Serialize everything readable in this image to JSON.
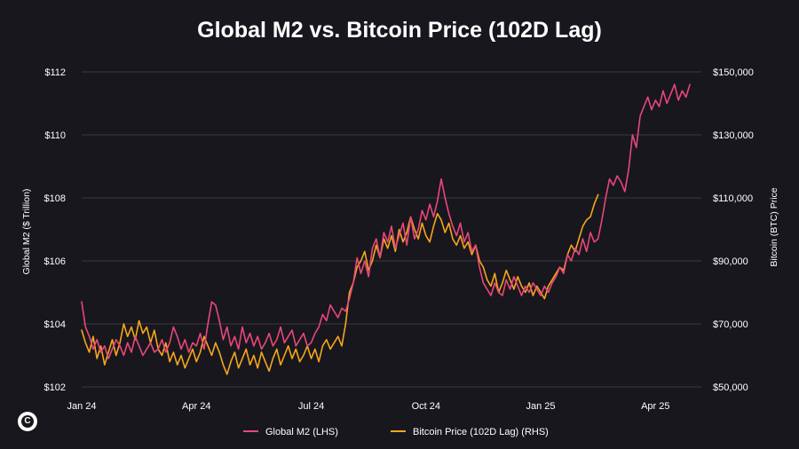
{
  "chart_data": {
    "type": "line",
    "title": "Global M2 vs. Bitcoin Price (102D Lag)",
    "ylabel_left": "Global M2 ($ Trillion)",
    "ylabel_right": "Bitcoin (BTC) Price",
    "ylim_left": [
      102,
      112
    ],
    "ylim_right": [
      50000,
      150000
    ],
    "yticks_left": [
      "$102",
      "$104",
      "$106",
      "$108",
      "$110",
      "$112"
    ],
    "yticks_right": [
      "$50,000",
      "$70,000",
      "$90,000",
      "$110,000",
      "$130,000",
      "$150,000"
    ],
    "xlim": [
      0,
      16.2
    ],
    "xticks": [
      {
        "label": "Jan 24",
        "x": 0
      },
      {
        "label": "Apr 24",
        "x": 3
      },
      {
        "label": "Jul 24",
        "x": 6
      },
      {
        "label": "Oct 24",
        "x": 9
      },
      {
        "label": "Jan 25",
        "x": 12
      },
      {
        "label": "Apr 25",
        "x": 15
      }
    ],
    "grid": true,
    "legend_position": "bottom-center",
    "series": [
      {
        "name": "Global M2 (LHS)",
        "axis": "left",
        "color": "#e8477a",
        "points": [
          [
            0.0,
            104.7
          ],
          [
            0.1,
            103.9
          ],
          [
            0.2,
            103.6
          ],
          [
            0.3,
            103.2
          ],
          [
            0.4,
            103.5
          ],
          [
            0.5,
            103.1
          ],
          [
            0.6,
            103.3
          ],
          [
            0.7,
            102.9
          ],
          [
            0.8,
            103.2
          ],
          [
            0.9,
            103.5
          ],
          [
            1.0,
            103.3
          ],
          [
            1.1,
            103.0
          ],
          [
            1.2,
            103.4
          ],
          [
            1.3,
            103.1
          ],
          [
            1.4,
            103.6
          ],
          [
            1.5,
            103.3
          ],
          [
            1.6,
            103.0
          ],
          [
            1.7,
            103.2
          ],
          [
            1.8,
            103.4
          ],
          [
            1.9,
            103.1
          ],
          [
            2.0,
            103.2
          ],
          [
            2.1,
            103.5
          ],
          [
            2.2,
            103.1
          ],
          [
            2.3,
            103.4
          ],
          [
            2.4,
            103.9
          ],
          [
            2.5,
            103.6
          ],
          [
            2.6,
            103.2
          ],
          [
            2.7,
            103.5
          ],
          [
            2.8,
            103.1
          ],
          [
            2.9,
            103.4
          ],
          [
            3.0,
            103.3
          ],
          [
            3.1,
            103.7
          ],
          [
            3.2,
            103.2
          ],
          [
            3.3,
            104.0
          ],
          [
            3.4,
            104.7
          ],
          [
            3.5,
            104.6
          ],
          [
            3.6,
            104.1
          ],
          [
            3.7,
            103.5
          ],
          [
            3.8,
            103.9
          ],
          [
            3.9,
            103.3
          ],
          [
            4.0,
            103.6
          ],
          [
            4.1,
            103.2
          ],
          [
            4.2,
            103.9
          ],
          [
            4.3,
            103.4
          ],
          [
            4.4,
            103.7
          ],
          [
            4.5,
            103.3
          ],
          [
            4.6,
            103.6
          ],
          [
            4.7,
            103.2
          ],
          [
            4.8,
            103.4
          ],
          [
            4.9,
            103.7
          ],
          [
            5.0,
            103.3
          ],
          [
            5.1,
            103.5
          ],
          [
            5.2,
            103.9
          ],
          [
            5.3,
            103.4
          ],
          [
            5.4,
            103.6
          ],
          [
            5.5,
            103.8
          ],
          [
            5.6,
            103.3
          ],
          [
            5.7,
            103.5
          ],
          [
            5.8,
            103.7
          ],
          [
            5.9,
            103.3
          ],
          [
            6.0,
            103.4
          ],
          [
            6.1,
            103.7
          ],
          [
            6.2,
            103.9
          ],
          [
            6.3,
            104.3
          ],
          [
            6.4,
            104.1
          ],
          [
            6.5,
            104.6
          ],
          [
            6.6,
            104.4
          ],
          [
            6.7,
            104.2
          ],
          [
            6.8,
            104.5
          ],
          [
            6.9,
            104.4
          ],
          [
            7.0,
            104.8
          ],
          [
            7.1,
            105.3
          ],
          [
            7.2,
            106.1
          ],
          [
            7.3,
            105.6
          ],
          [
            7.4,
            106.0
          ],
          [
            7.5,
            105.5
          ],
          [
            7.6,
            106.4
          ],
          [
            7.7,
            106.7
          ],
          [
            7.8,
            106.1
          ],
          [
            7.9,
            106.9
          ],
          [
            8.0,
            106.6
          ],
          [
            8.1,
            107.1
          ],
          [
            8.2,
            106.4
          ],
          [
            8.3,
            106.8
          ],
          [
            8.4,
            107.2
          ],
          [
            8.5,
            106.5
          ],
          [
            8.6,
            107.4
          ],
          [
            8.7,
            106.7
          ],
          [
            8.8,
            107.0
          ],
          [
            8.9,
            107.6
          ],
          [
            9.0,
            107.3
          ],
          [
            9.1,
            107.8
          ],
          [
            9.2,
            107.4
          ],
          [
            9.3,
            107.9
          ],
          [
            9.4,
            108.6
          ],
          [
            9.5,
            108.0
          ],
          [
            9.6,
            107.5
          ],
          [
            9.7,
            107.1
          ],
          [
            9.8,
            106.8
          ],
          [
            9.9,
            107.2
          ],
          [
            10.0,
            106.6
          ],
          [
            10.1,
            106.9
          ],
          [
            10.2,
            106.3
          ],
          [
            10.3,
            106.5
          ],
          [
            10.4,
            105.8
          ],
          [
            10.5,
            105.3
          ],
          [
            10.6,
            105.1
          ],
          [
            10.7,
            104.9
          ],
          [
            10.8,
            105.3
          ],
          [
            10.9,
            105.0
          ],
          [
            11.0,
            104.9
          ],
          [
            11.1,
            105.4
          ],
          [
            11.2,
            105.1
          ],
          [
            11.3,
            105.5
          ],
          [
            11.4,
            105.2
          ],
          [
            11.5,
            104.9
          ],
          [
            11.6,
            105.2
          ],
          [
            11.7,
            105.0
          ],
          [
            11.8,
            105.3
          ],
          [
            11.9,
            105.1
          ],
          [
            12.0,
            104.9
          ],
          [
            12.1,
            105.2
          ],
          [
            12.2,
            105.0
          ],
          [
            12.3,
            105.3
          ],
          [
            12.4,
            105.5
          ],
          [
            12.5,
            105.8
          ],
          [
            12.6,
            105.6
          ],
          [
            12.7,
            106.2
          ],
          [
            12.8,
            106.0
          ],
          [
            12.9,
            106.4
          ],
          [
            13.0,
            106.2
          ],
          [
            13.1,
            106.7
          ],
          [
            13.2,
            106.3
          ],
          [
            13.3,
            106.9
          ],
          [
            13.4,
            106.6
          ],
          [
            13.5,
            106.7
          ],
          [
            13.6,
            107.3
          ],
          [
            13.7,
            108.0
          ],
          [
            13.8,
            108.6
          ],
          [
            13.9,
            108.4
          ],
          [
            14.0,
            108.7
          ],
          [
            14.1,
            108.5
          ],
          [
            14.2,
            108.2
          ],
          [
            14.3,
            108.9
          ],
          [
            14.4,
            110.0
          ],
          [
            14.5,
            109.6
          ],
          [
            14.6,
            110.6
          ],
          [
            14.7,
            110.9
          ],
          [
            14.8,
            111.2
          ],
          [
            14.9,
            110.8
          ],
          [
            15.0,
            111.1
          ],
          [
            15.1,
            110.9
          ],
          [
            15.2,
            111.4
          ],
          [
            15.3,
            111.0
          ],
          [
            15.4,
            111.3
          ],
          [
            15.5,
            111.6
          ],
          [
            15.6,
            111.1
          ],
          [
            15.7,
            111.4
          ],
          [
            15.8,
            111.2
          ],
          [
            15.9,
            111.6
          ]
        ]
      },
      {
        "name": "Bitcoin Price (102D Lag) (RHS)",
        "axis": "right",
        "color": "#f5a71c",
        "points": [
          [
            0.0,
            68000
          ],
          [
            0.1,
            64000
          ],
          [
            0.2,
            61000
          ],
          [
            0.3,
            66000
          ],
          [
            0.4,
            59000
          ],
          [
            0.5,
            63000
          ],
          [
            0.6,
            57000
          ],
          [
            0.7,
            61000
          ],
          [
            0.8,
            65000
          ],
          [
            0.9,
            60000
          ],
          [
            1.0,
            64000
          ],
          [
            1.1,
            70000
          ],
          [
            1.2,
            66000
          ],
          [
            1.3,
            69000
          ],
          [
            1.4,
            65000
          ],
          [
            1.5,
            71000
          ],
          [
            1.6,
            67000
          ],
          [
            1.7,
            69000
          ],
          [
            1.8,
            64000
          ],
          [
            1.9,
            68000
          ],
          [
            2.0,
            62000
          ],
          [
            2.1,
            60000
          ],
          [
            2.2,
            64000
          ],
          [
            2.3,
            58000
          ],
          [
            2.4,
            61000
          ],
          [
            2.5,
            57000
          ],
          [
            2.6,
            60000
          ],
          [
            2.7,
            56000
          ],
          [
            2.8,
            59000
          ],
          [
            2.9,
            62000
          ],
          [
            3.0,
            58000
          ],
          [
            3.1,
            61000
          ],
          [
            3.2,
            66000
          ],
          [
            3.3,
            63000
          ],
          [
            3.4,
            60000
          ],
          [
            3.5,
            64000
          ],
          [
            3.6,
            61000
          ],
          [
            3.7,
            57000
          ],
          [
            3.8,
            54000
          ],
          [
            3.9,
            58000
          ],
          [
            4.0,
            61000
          ],
          [
            4.1,
            56000
          ],
          [
            4.2,
            59000
          ],
          [
            4.3,
            62000
          ],
          [
            4.4,
            57000
          ],
          [
            4.5,
            60000
          ],
          [
            4.6,
            56000
          ],
          [
            4.7,
            61000
          ],
          [
            4.8,
            58000
          ],
          [
            4.9,
            55000
          ],
          [
            5.0,
            59000
          ],
          [
            5.1,
            62000
          ],
          [
            5.2,
            57000
          ],
          [
            5.3,
            60000
          ],
          [
            5.4,
            63000
          ],
          [
            5.5,
            59000
          ],
          [
            5.6,
            62000
          ],
          [
            5.7,
            58000
          ],
          [
            5.8,
            60000
          ],
          [
            5.9,
            63000
          ],
          [
            6.0,
            59000
          ],
          [
            6.1,
            62000
          ],
          [
            6.2,
            58000
          ],
          [
            6.3,
            63000
          ],
          [
            6.4,
            65000
          ],
          [
            6.5,
            62000
          ],
          [
            6.6,
            64000
          ],
          [
            6.7,
            66000
          ],
          [
            6.8,
            63000
          ],
          [
            6.9,
            70000
          ],
          [
            7.0,
            80000
          ],
          [
            7.1,
            83000
          ],
          [
            7.2,
            88000
          ],
          [
            7.3,
            90000
          ],
          [
            7.4,
            93000
          ],
          [
            7.5,
            87000
          ],
          [
            7.6,
            90000
          ],
          [
            7.7,
            95000
          ],
          [
            7.8,
            91000
          ],
          [
            7.9,
            97000
          ],
          [
            8.0,
            94000
          ],
          [
            8.1,
            98000
          ],
          [
            8.2,
            93000
          ],
          [
            8.3,
            100000
          ],
          [
            8.4,
            96000
          ],
          [
            8.5,
            99000
          ],
          [
            8.6,
            104000
          ],
          [
            8.7,
            100000
          ],
          [
            8.8,
            97000
          ],
          [
            8.9,
            102000
          ],
          [
            9.0,
            98000
          ],
          [
            9.1,
            96000
          ],
          [
            9.2,
            101000
          ],
          [
            9.3,
            105000
          ],
          [
            9.4,
            103000
          ],
          [
            9.5,
            99000
          ],
          [
            9.6,
            102000
          ],
          [
            9.7,
            97000
          ],
          [
            9.8,
            95000
          ],
          [
            9.9,
            98000
          ],
          [
            10.0,
            94000
          ],
          [
            10.1,
            96000
          ],
          [
            10.2,
            92000
          ],
          [
            10.3,
            95000
          ],
          [
            10.4,
            90000
          ],
          [
            10.5,
            88000
          ],
          [
            10.6,
            84000
          ],
          [
            10.7,
            82000
          ],
          [
            10.8,
            86000
          ],
          [
            10.9,
            80000
          ],
          [
            11.0,
            83000
          ],
          [
            11.1,
            87000
          ],
          [
            11.2,
            84000
          ],
          [
            11.3,
            81000
          ],
          [
            11.4,
            85000
          ],
          [
            11.5,
            82000
          ],
          [
            11.6,
            80000
          ],
          [
            11.7,
            83000
          ],
          [
            11.8,
            79000
          ],
          [
            11.9,
            82000
          ],
          [
            12.0,
            80000
          ],
          [
            12.1,
            78000
          ],
          [
            12.2,
            82000
          ],
          [
            12.3,
            84000
          ],
          [
            12.4,
            86000
          ],
          [
            12.5,
            88000
          ],
          [
            12.6,
            87000
          ],
          [
            12.7,
            92000
          ],
          [
            12.8,
            95000
          ],
          [
            12.9,
            93000
          ],
          [
            13.0,
            97000
          ],
          [
            13.1,
            101000
          ],
          [
            13.2,
            103000
          ],
          [
            13.3,
            104000
          ],
          [
            13.4,
            108000
          ],
          [
            13.5,
            111000
          ]
        ]
      }
    ]
  },
  "legend": {
    "m2_label": "Global M2 (LHS)",
    "btc_label": "Bitcoin Price (102D Lag) (RHS)"
  },
  "logo": {
    "glyph": "C"
  }
}
